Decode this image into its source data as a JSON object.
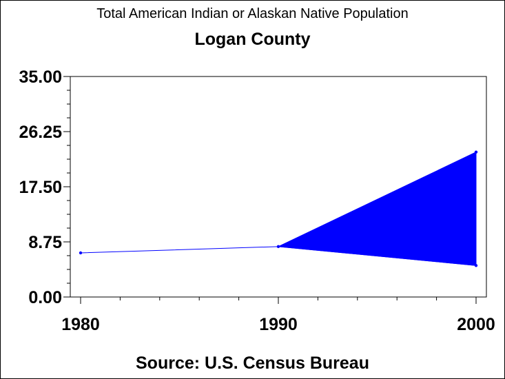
{
  "chart_data": {
    "type": "line",
    "title": "Total American Indian or Alaskan Native Population",
    "subtitle": "Logan County",
    "footnote": "Source: U.S. Census Bureau",
    "x": [
      1980,
      1990,
      2000
    ],
    "x_tick_labels": [
      "1980",
      "1990",
      "2000"
    ],
    "y_tick_labels": [
      "0.00",
      "8.75",
      "17.50",
      "26.25",
      "35.00"
    ],
    "ylim": [
      0,
      35
    ],
    "xlim": [
      1980,
      2000
    ],
    "series": [
      {
        "values": [
          7,
          8,
          5
        ]
      }
    ],
    "band": {
      "x_start": 1990,
      "x_end": 2000,
      "upper_end": 23,
      "lower_end": 5
    },
    "grid": false,
    "colors": {
      "series": "#0000ff",
      "axis": "#000000"
    }
  }
}
